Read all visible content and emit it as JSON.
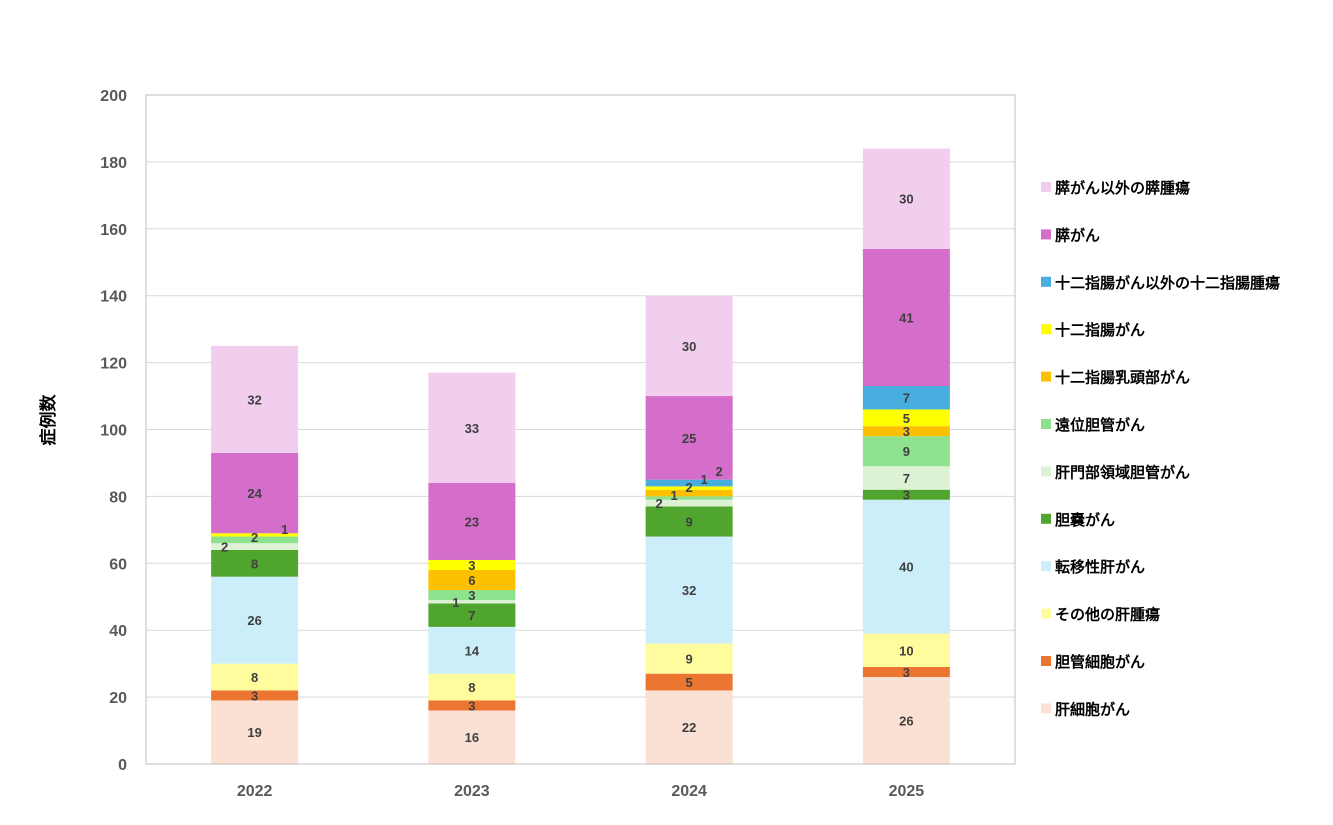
{
  "chart_data": {
    "type": "bar",
    "stacked": true,
    "categories": [
      "2022",
      "2023",
      "2024",
      "2025"
    ],
    "ylabel": "症例数",
    "xlabel": "",
    "ylim": [
      0,
      200
    ],
    "yticks": [
      0,
      20,
      40,
      60,
      80,
      100,
      120,
      140,
      160,
      180,
      200
    ],
    "grid": true,
    "legend_position": "right",
    "series": [
      {
        "name": "肝細胞がん",
        "color": "#FBE1D4",
        "values": [
          19,
          16,
          22,
          26
        ]
      },
      {
        "name": "胆管細胞がん",
        "color": "#EC7531",
        "values": [
          3,
          3,
          5,
          3
        ]
      },
      {
        "name": "その他の肝腫瘍",
        "color": "#FEFC9C",
        "values": [
          8,
          8,
          9,
          10
        ]
      },
      {
        "name": "転移性肝がん",
        "color": "#CCEEFB",
        "values": [
          26,
          14,
          32,
          40
        ]
      },
      {
        "name": "胆嚢がん",
        "color": "#4FA52E",
        "values": [
          8,
          7,
          9,
          3
        ]
      },
      {
        "name": "肝門部領域胆管がん",
        "color": "#DDF2D5",
        "values": [
          2,
          1,
          2,
          7
        ]
      },
      {
        "name": "遠位胆管がん",
        "color": "#8EE28D",
        "values": [
          2,
          3,
          1,
          9
        ]
      },
      {
        "name": "十二指腸乳頭部がん",
        "color": "#FDC000",
        "values": [
          0,
          6,
          2,
          3
        ]
      },
      {
        "name": "十二指腸がん",
        "color": "#FFFF00",
        "values": [
          1,
          3,
          1,
          5
        ]
      },
      {
        "name": "十二指腸がん以外の十二指腸腫瘍",
        "color": "#48ADDF",
        "values": [
          0,
          0,
          2,
          7
        ]
      },
      {
        "name": "膵がん",
        "color": "#D56DCA",
        "values": [
          24,
          23,
          25,
          41
        ]
      },
      {
        "name": "膵がん以外の膵腫瘍",
        "color": "#F1CEEE",
        "values": [
          32,
          33,
          30,
          30
        ]
      }
    ]
  }
}
